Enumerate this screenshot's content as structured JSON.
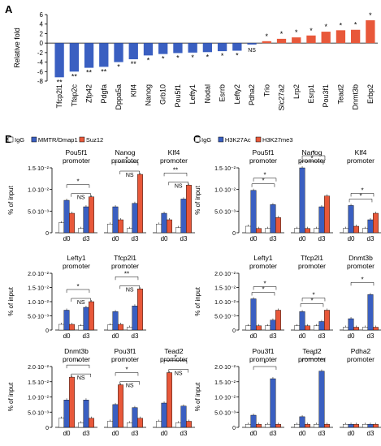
{
  "colors": {
    "down": "#3a5fc1",
    "up": "#e8583a",
    "ns": "#e8583a",
    "white": "#ffffff",
    "blue": "#3a5fc1",
    "red": "#e8583a"
  },
  "panel_labels": {
    "a": "A",
    "b": "B",
    "c": "C"
  },
  "ylabel_a": "Relative fold",
  "ylabel_pct": "% of input",
  "legend_b": [
    "IgG",
    "MMTR/Dmap1",
    "Suz12"
  ],
  "legend_c": [
    "IgG",
    "H3K27Ac",
    "H3K27me3"
  ],
  "chart_data": [
    {
      "type": "bar",
      "panel": "A",
      "ylabel": "Relative fold",
      "ylim": [
        -8,
        6
      ],
      "yticks": [
        6,
        4,
        2,
        0,
        -2,
        -4,
        -6,
        -8
      ],
      "categories": [
        "Tfcp2l1",
        "Tfap2c",
        "Zfp42",
        "Pdgfa",
        "Dppa5a",
        "Klf4",
        "Nanog",
        "Grb10",
        "Pou5f1",
        "Lefty1",
        "Nodal",
        "Esrrb",
        "Lefty2",
        "Pdha2",
        "Trio",
        "Slc27a2",
        "Lrp2",
        "Esrp1",
        "Pou3f1",
        "Tead2",
        "Dnmt3b",
        "Erbp2"
      ],
      "values": [
        -7.2,
        -6.0,
        -5.2,
        -5.0,
        -4.0,
        -3.4,
        -2.6,
        -2.3,
        -2.1,
        -2.0,
        -1.9,
        -1.7,
        -1.6,
        -0.3,
        0.4,
        0.9,
        1.2,
        1.6,
        2.4,
        2.7,
        2.8,
        4.8
      ],
      "significance": [
        "**",
        "**",
        "**",
        "**",
        "*",
        "**",
        "*",
        "*",
        "*",
        "*",
        "*",
        "*",
        "*",
        "NS",
        "*",
        "*",
        "*",
        "*",
        "*",
        "*",
        "*",
        "*"
      ]
    },
    {
      "type": "bar",
      "panel": "B",
      "ylabel": "% of input",
      "groups": [
        "d0",
        "d3"
      ],
      "series_names": [
        "IgG",
        "MMTR/Dmap1",
        "Suz12"
      ],
      "rows": [
        {
          "ylim": [
            0,
            0.015
          ],
          "yticks": [
            "0",
            "5.0·10⁻³",
            "1.0·10⁻²",
            "1.5·10⁻²"
          ],
          "plots": [
            {
              "title": "Pou5f1\npromoter",
              "values": [
                [
                  0.0023,
                  0.0075,
                  0.0045
                ],
                [
                  0.001,
                  0.006,
                  0.0083
                ]
              ],
              "annotations": [
                {
                  "from": 0,
                  "to": 1,
                  "label": "*"
                },
                {
                  "from": 0,
                  "to": 0,
                  "label": "NS",
                  "inner": true
                }
              ]
            },
            {
              "title": "Nanog\npromoter",
              "values": [
                [
                  0.002,
                  0.006,
                  0.003
                ],
                [
                  0.001,
                  0.0068,
                  0.0135
                ]
              ],
              "annotations": [
                {
                  "from": 0,
                  "to": 1,
                  "label": "*"
                },
                {
                  "from": 0,
                  "to": 0,
                  "label": "NS",
                  "inner": true
                }
              ]
            },
            {
              "title": "Klf4\npromoter",
              "values": [
                [
                  0.002,
                  0.0045,
                  0.003
                ],
                [
                  0.0012,
                  0.0078,
                  0.011
                ]
              ],
              "annotations": [
                {
                  "from": 0,
                  "to": 1,
                  "label": "**"
                },
                {
                  "from": 0,
                  "to": 0,
                  "label": "NS",
                  "inner": true
                }
              ]
            }
          ]
        },
        {
          "ylim": [
            0,
            0.02
          ],
          "yticks": [
            "0",
            "5.0·10⁻³",
            "1.0·10⁻²",
            "1.5·10⁻²",
            "2.0·10⁻²"
          ],
          "plots": [
            {
              "title": "Lefty1\npromoter",
              "values": [
                [
                  0.002,
                  0.007,
                  0.002
                ],
                [
                  0.0015,
                  0.008,
                  0.01
                ]
              ],
              "annotations": [
                {
                  "from": 0,
                  "to": 1,
                  "label": "*"
                },
                {
                  "from": 0,
                  "to": 0,
                  "label": "NS",
                  "inner": true
                }
              ]
            },
            {
              "title": "Tfcp2l1\npromoter",
              "values": [
                [
                  0.0018,
                  0.0065,
                  0.002
                ],
                [
                  0.001,
                  0.0085,
                  0.0145
                ]
              ],
              "annotations": [
                {
                  "from": 0,
                  "to": 1,
                  "label": "**"
                },
                {
                  "from": 0,
                  "to": 0,
                  "label": "NS",
                  "inner": true
                }
              ]
            },
            {
              "title": "",
              "values": [],
              "annotations": []
            }
          ]
        },
        {
          "ylim": [
            0,
            0.02
          ],
          "yticks": [
            "0",
            "5.0·10⁻³",
            "1.0·10⁻²",
            "1.5·10⁻²",
            "2.0·10⁻²"
          ],
          "plots": [
            {
              "title": "Dnmt3b\npromoter",
              "values": [
                [
                  0.003,
                  0.009,
                  0.0165
                ],
                [
                  0.0015,
                  0.009,
                  0.003
                ]
              ],
              "annotations": [
                {
                  "from": 0,
                  "to": 1,
                  "label": "*"
                },
                {
                  "from": 0,
                  "to": 0,
                  "label": "NS",
                  "inner": true
                }
              ]
            },
            {
              "title": "Pou3f1\npromoter",
              "values": [
                [
                  0.002,
                  0.0075,
                  0.014
                ],
                [
                  0.0015,
                  0.0065,
                  0.003
                ]
              ],
              "annotations": [
                {
                  "from": 0,
                  "to": 1,
                  "label": "*"
                },
                {
                  "from": 0,
                  "to": 0,
                  "label": "NS",
                  "inner": true
                }
              ]
            },
            {
              "title": "Tead2\npromoter",
              "values": [
                [
                  0.002,
                  0.008,
                  0.018
                ],
                [
                  0.0015,
                  0.007,
                  0.002
                ]
              ],
              "annotations": [
                {
                  "from": 0,
                  "to": 1,
                  "label": "*"
                },
                {
                  "from": 0,
                  "to": 0,
                  "label": "NS",
                  "inner": true
                }
              ]
            }
          ]
        }
      ]
    },
    {
      "type": "bar",
      "panel": "C",
      "ylabel": "% of input",
      "groups": [
        "d0",
        "d3"
      ],
      "series_names": [
        "IgG",
        "H3K27Ac",
        "H3K27me3"
      ],
      "rows": [
        {
          "ylim": [
            0,
            0.015
          ],
          "yticks": [
            "0",
            "5.0·10⁻³",
            "1.0·10⁻²",
            "1.5·10⁻²"
          ],
          "plots": [
            {
              "title": "Pou5f1\npromoter",
              "values": [
                [
                  0.0015,
                  0.0098,
                  0.001
                ],
                [
                  0.001,
                  0.0065,
                  0.0035
                ]
              ],
              "annotations": [
                {
                  "from": 0,
                  "to": 1,
                  "label": "*",
                  "level": 1
                },
                {
                  "from": 0,
                  "to": 1,
                  "label": "*",
                  "level": 0
                }
              ]
            },
            {
              "title": "Nanog\npromoter",
              "values": [
                [
                  0.001,
                  0.015,
                  0.001
                ],
                [
                  0.001,
                  0.006,
                  0.0085
                ]
              ],
              "annotations": [
                {
                  "from": 0,
                  "to": 1,
                  "label": "*",
                  "level": 1
                },
                {
                  "from": 0,
                  "to": 1,
                  "label": "*",
                  "level": 0
                }
              ]
            },
            {
              "title": "Klf4\npromoter",
              "values": [
                [
                  0.001,
                  0.0063,
                  0.0015
                ],
                [
                  0.001,
                  0.003,
                  0.0045
                ]
              ],
              "annotations": [
                {
                  "from": 0,
                  "to": 1,
                  "label": "*",
                  "level": 1
                },
                {
                  "from": 0,
                  "to": 1,
                  "label": "*",
                  "level": 0
                }
              ]
            }
          ]
        },
        {
          "ylim": [
            0,
            0.02
          ],
          "yticks": [
            "0",
            "5.0·10⁻³",
            "1.0·10⁻²",
            "1.5·10⁻²",
            "2.0·10⁻²"
          ],
          "plots": [
            {
              "title": "Lefty1\npromoter",
              "values": [
                [
                  0.0015,
                  0.011,
                  0.0015
                ],
                [
                  0.0015,
                  0.0035,
                  0.007
                ]
              ],
              "annotations": [
                {
                  "from": 0,
                  "to": 1,
                  "label": "*",
                  "level": 1
                },
                {
                  "from": 0,
                  "to": 1,
                  "label": "*",
                  "level": 0
                }
              ]
            },
            {
              "title": "Tfcp2l1\npromoter",
              "values": [
                [
                  0.0015,
                  0.0065,
                  0.0015
                ],
                [
                  0.0015,
                  0.003,
                  0.007
                ]
              ],
              "annotations": [
                {
                  "from": 0,
                  "to": 1,
                  "label": "*",
                  "level": 1
                },
                {
                  "from": 0,
                  "to": 1,
                  "label": "*",
                  "level": 0
                }
              ]
            },
            {
              "title": "Dnmt3b\npromoter",
              "values": [
                [
                  0.001,
                  0.004,
                  0.001
                ],
                [
                  0.001,
                  0.0125,
                  0.001
                ]
              ],
              "annotations": [
                {
                  "from": 0,
                  "to": 1,
                  "label": "*",
                  "level": 1
                }
              ]
            }
          ]
        },
        {
          "ylim": [
            0,
            0.02
          ],
          "yticks": [
            "0",
            "5.0·10⁻³",
            "1.0·10⁻²",
            "1.5·10⁻²",
            "2.0·10⁻²"
          ],
          "plots": [
            {
              "title": "Pou3f1\npromoter",
              "values": [
                [
                  0.001,
                  0.004,
                  0.001
                ],
                [
                  0.001,
                  0.016,
                  0.001
                ]
              ],
              "annotations": [
                {
                  "from": 0,
                  "to": 1,
                  "label": "*",
                  "level": 1
                }
              ]
            },
            {
              "title": "Tead2\npromoter",
              "values": [
                [
                  0.001,
                  0.0035,
                  0.001
                ],
                [
                  0.001,
                  0.0185,
                  0.001
                ]
              ],
              "annotations": [
                {
                  "from": 0,
                  "to": 1,
                  "label": "*",
                  "level": 1
                }
              ]
            },
            {
              "title": "Pdha2\npromoter",
              "values": [
                [
                  0.001,
                  0.001,
                  0.001
                ],
                [
                  0.001,
                  0.001,
                  0.001
                ]
              ],
              "annotations": []
            }
          ]
        }
      ]
    }
  ]
}
